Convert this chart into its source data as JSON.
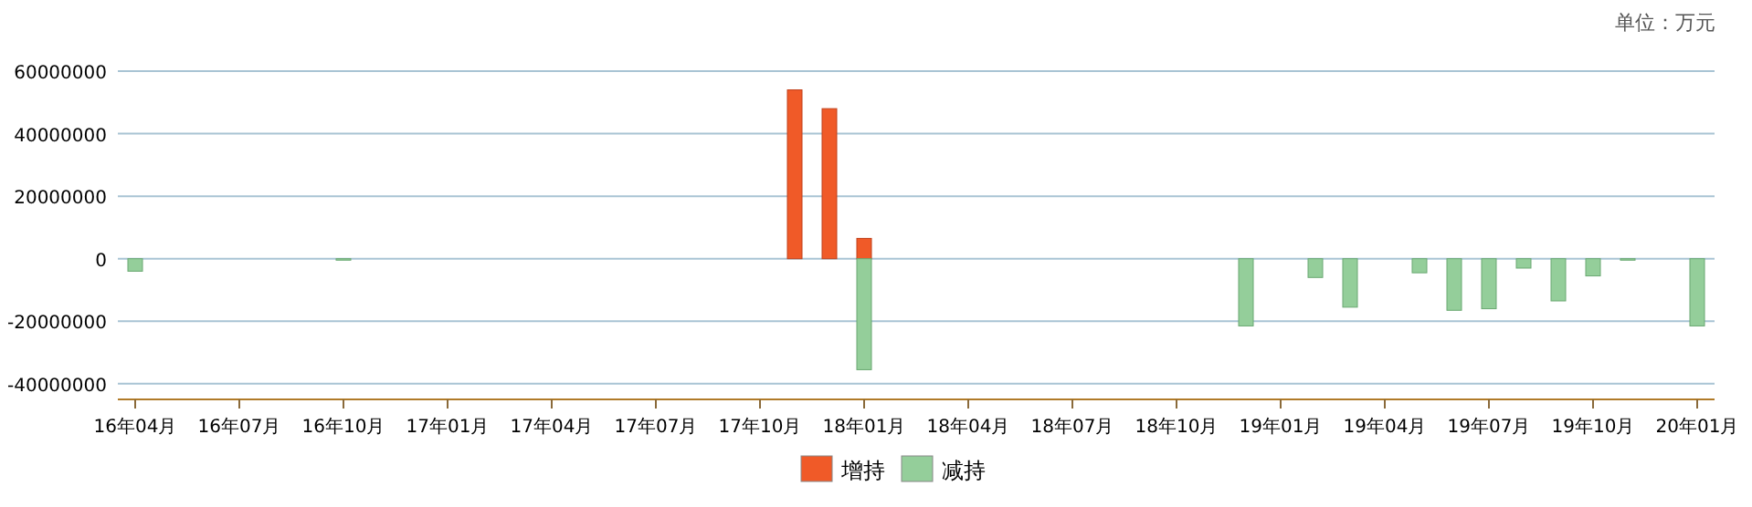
{
  "chart_data": {
    "type": "bar",
    "stacked": true,
    "categories": [
      "16年04月",
      null,
      null,
      "16年07月",
      null,
      null,
      "16年10月",
      null,
      null,
      "17年01月",
      null,
      null,
      "17年04月",
      null,
      null,
      "17年07月",
      null,
      null,
      "17年10月",
      null,
      null,
      "18年01月",
      null,
      null,
      "18年04月",
      null,
      null,
      "18年07月",
      null,
      null,
      "18年10月",
      null,
      null,
      "19年01月",
      null,
      null,
      "19年04月",
      null,
      null,
      "19年07月",
      null,
      null,
      "19年10月",
      null,
      null,
      "20年01月"
    ],
    "series": [
      {
        "name": "增持",
        "color": "#f05a28",
        "values": [
          null,
          null,
          null,
          null,
          null,
          null,
          null,
          null,
          null,
          null,
          null,
          null,
          null,
          null,
          null,
          null,
          null,
          null,
          null,
          54000000,
          48000000,
          6500000,
          null,
          null,
          null,
          null,
          null,
          null,
          null,
          null,
          null,
          null,
          null,
          null,
          null,
          null,
          null,
          null,
          null,
          null,
          null,
          null,
          null,
          null,
          null,
          null
        ]
      },
      {
        "name": "减持",
        "color": "#94ce9a",
        "values": [
          -4000000,
          null,
          null,
          null,
          null,
          null,
          -300000,
          null,
          null,
          null,
          null,
          null,
          null,
          null,
          null,
          null,
          null,
          null,
          null,
          null,
          null,
          -35500000,
          null,
          null,
          null,
          null,
          null,
          null,
          null,
          null,
          null,
          null,
          -21500000,
          null,
          -6000000,
          -15500000,
          null,
          -4500000,
          -16500000,
          -16000000,
          -3000000,
          -13500000,
          -5500000,
          -300000,
          null,
          -21500000
        ]
      }
    ],
    "ylim": [
      -45000000,
      60000000
    ],
    "yticks": [
      -40000000,
      -20000000,
      0,
      20000000,
      40000000,
      60000000
    ],
    "grid": "y",
    "legend": "bottom",
    "annotations": [
      "单位：万元"
    ]
  }
}
